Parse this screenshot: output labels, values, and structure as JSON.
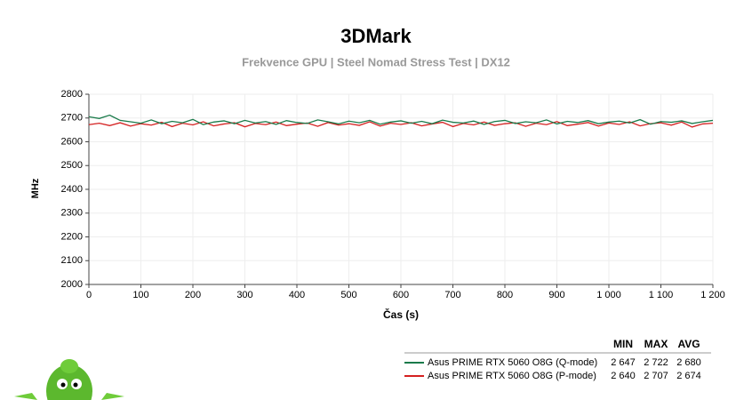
{
  "chart_data": {
    "type": "line",
    "title": "3DMark",
    "subtitle": "Frekvence GPU | Steel Nomad Stress Test | DX12",
    "x_label": "Čas (s)",
    "y_label": "MHz",
    "x": [
      0,
      20,
      40,
      60,
      80,
      100,
      120,
      140,
      160,
      180,
      200,
      220,
      240,
      260,
      280,
      300,
      320,
      340,
      360,
      380,
      400,
      420,
      440,
      460,
      480,
      500,
      520,
      540,
      560,
      580,
      600,
      620,
      640,
      660,
      680,
      700,
      720,
      740,
      760,
      780,
      800,
      820,
      840,
      860,
      880,
      900,
      920,
      940,
      960,
      980,
      1000,
      1020,
      1040,
      1060,
      1080,
      1100,
      1120,
      1140,
      1160,
      1180,
      1200
    ],
    "series": [
      {
        "name": "Asus PRIME RTX 5060 O8G (Q-mode)",
        "color": "#1a7a4a",
        "values": [
          2705,
          2698,
          2712,
          2690,
          2684,
          2678,
          2692,
          2676,
          2686,
          2680,
          2694,
          2672,
          2683,
          2688,
          2676,
          2690,
          2679,
          2685,
          2673,
          2689,
          2681,
          2677,
          2692,
          2684,
          2675,
          2687,
          2680,
          2690,
          2674,
          2683,
          2688,
          2678,
          2686,
          2676,
          2691,
          2682,
          2679,
          2687,
          2673,
          2685,
          2690,
          2677,
          2684,
          2680,
          2692,
          2675,
          2686,
          2681,
          2689,
          2676,
          2683,
          2687,
          2679,
          2693,
          2674,
          2685,
          2682,
          2688,
          2677,
          2684,
          2690
        ],
        "stats": [
          2647,
          2722,
          2680
        ],
        "stats_labels": [
          "2 647",
          "2 722",
          "2 680"
        ]
      },
      {
        "name": "Asus PRIME RTX 5060 O8G (P-mode)",
        "color": "#d42020",
        "values": [
          2672,
          2678,
          2668,
          2680,
          2666,
          2676,
          2670,
          2682,
          2664,
          2678,
          2671,
          2684,
          2667,
          2675,
          2680,
          2663,
          2677,
          2672,
          2683,
          2668,
          2674,
          2679,
          2665,
          2681,
          2670,
          2676,
          2669,
          2684,
          2666,
          2678,
          2673,
          2680,
          2667,
          2675,
          2682,
          2664,
          2677,
          2671,
          2683,
          2669,
          2676,
          2680,
          2665,
          2678,
          2672,
          2685,
          2668,
          2674,
          2681,
          2666,
          2679,
          2673,
          2684,
          2667,
          2676,
          2680,
          2670,
          2683,
          2662,
          2675,
          2678
        ],
        "stats": [
          2640,
          2707,
          2674
        ],
        "stats_labels": [
          "2 640",
          "2 707",
          "2 674"
        ]
      }
    ],
    "stat_headers": [
      "MIN",
      "MAX",
      "AVG"
    ],
    "xlim": [
      0,
      1200
    ],
    "xticks": [
      0,
      100,
      200,
      300,
      400,
      500,
      600,
      700,
      800,
      900,
      {
        "value": 1000,
        "label": "1 000"
      },
      {
        "value": 1100,
        "label": "1 100"
      },
      {
        "value": 1200,
        "label": "1 200"
      }
    ],
    "ylim": [
      2000,
      2800
    ],
    "yticks": [
      2000,
      2100,
      2200,
      2300,
      2400,
      2500,
      2600,
      2700,
      2800
    ],
    "grid": true
  }
}
